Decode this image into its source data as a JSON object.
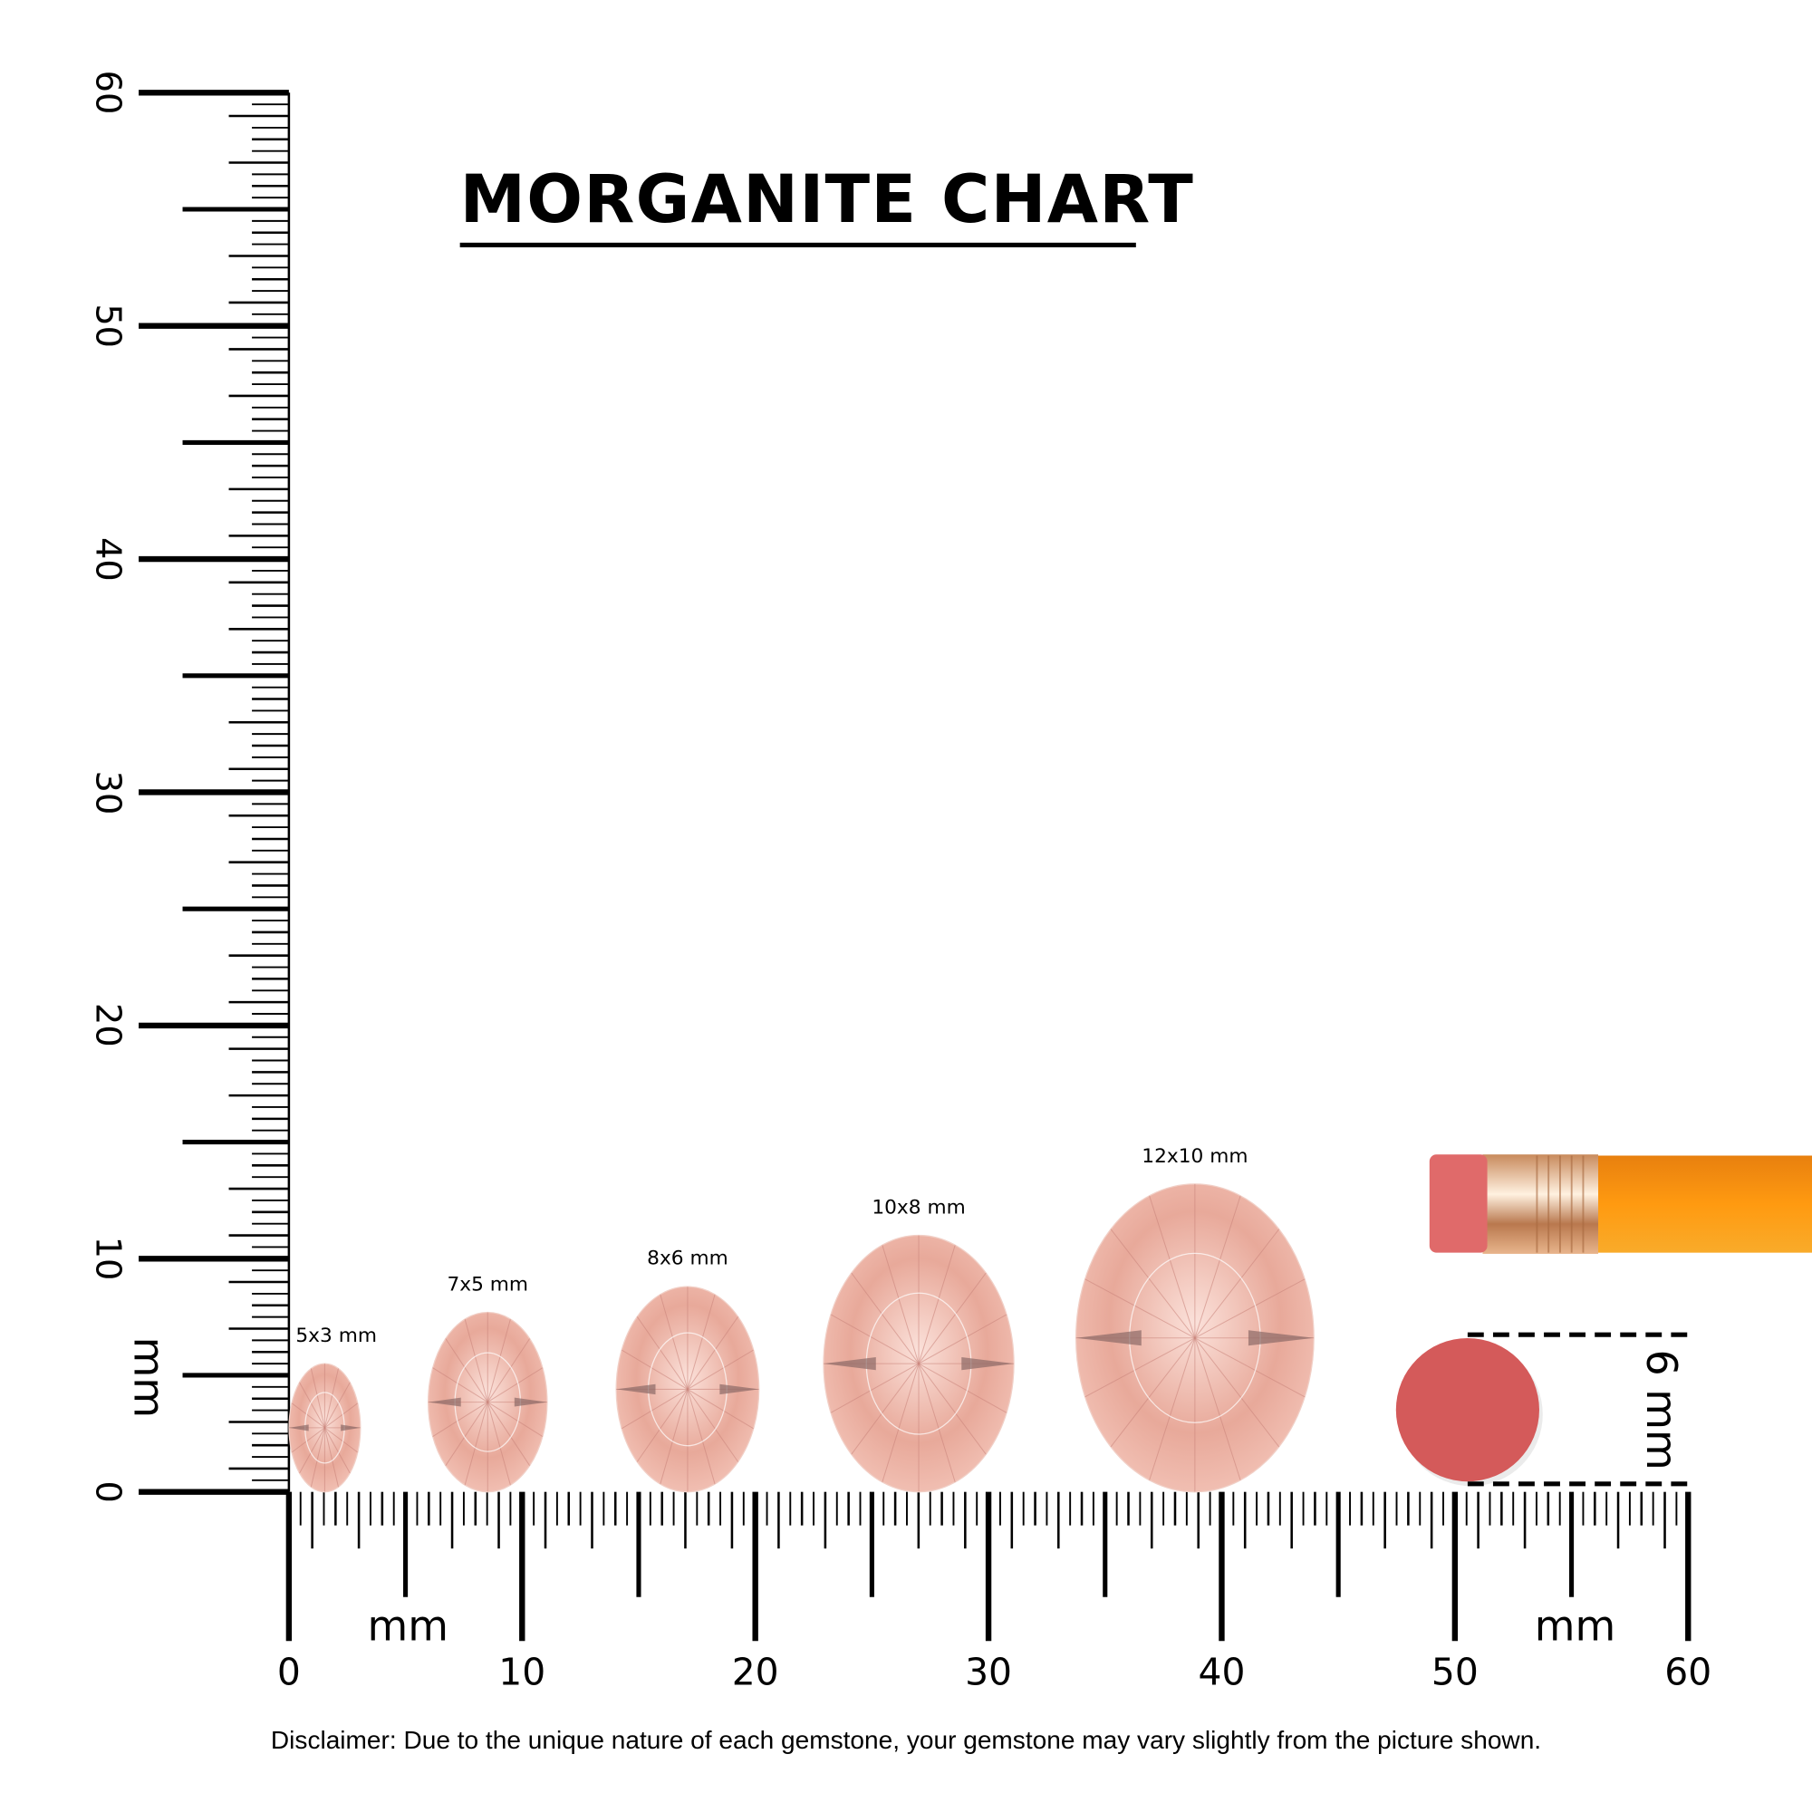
{
  "title": "MORGANITE CHART",
  "ruler": {
    "unit_label": "mm",
    "range": [
      0,
      60
    ],
    "major_step": 10,
    "labels": [
      "0",
      "10",
      "20",
      "30",
      "40",
      "50",
      "60"
    ]
  },
  "gems": [
    {
      "label": "5x3 mm",
      "length_mm": 5,
      "width_mm": 3
    },
    {
      "label": "7x5 mm",
      "length_mm": 7,
      "width_mm": 5
    },
    {
      "label": "8x6 mm",
      "length_mm": 8,
      "width_mm": 6
    },
    {
      "label": "10x8 mm",
      "length_mm": 10,
      "width_mm": 8
    },
    {
      "label": "12x10 mm",
      "length_mm": 12,
      "width_mm": 10
    }
  ],
  "eraser_reference": {
    "label": "6 mm",
    "diameter_mm": 6
  },
  "disclaimer": "Disclaimer: Due to the unique nature of each gemstone, your gemstone may vary slightly from the picture shown.",
  "colors": {
    "gem": "#e8a99a",
    "gem_light": "#fbe1da",
    "eraser": "#d45a5a",
    "pencil": "#f7941d",
    "ferrule": "#d9a57a"
  }
}
